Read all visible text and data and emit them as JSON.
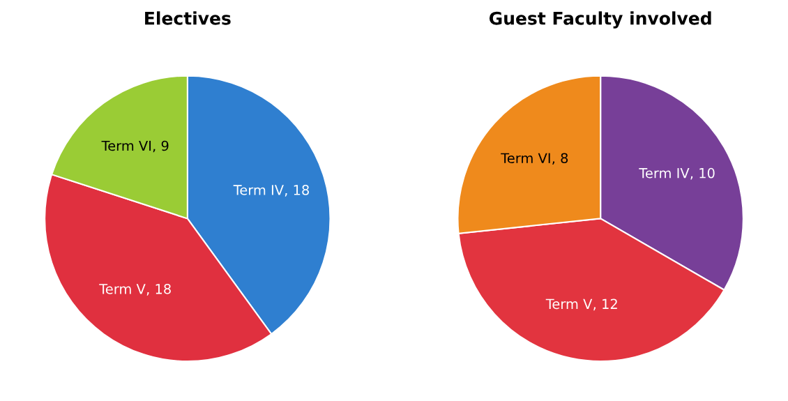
{
  "chart_data": [
    {
      "type": "pie",
      "title": "Electives",
      "categories": [
        "Term IV",
        "Term V",
        "Term VI"
      ],
      "values": [
        18,
        18,
        9
      ],
      "value_labels": [
        ", 18",
        ", 18",
        ", 9"
      ],
      "colors": [
        "#2f7fd0",
        "#e0303f",
        "#9acc35"
      ],
      "legend": false
    },
    {
      "type": "pie",
      "title": "Guest Faculty involved",
      "categories": [
        "Term IV",
        "Term V",
        "Term VI"
      ],
      "values": [
        10,
        12,
        8
      ],
      "value_labels": [
        ", 10",
        ", 12",
        ", 8"
      ],
      "colors": [
        "#773f98",
        "#e2343f",
        "#ef8a1c"
      ],
      "legend": false
    }
  ]
}
